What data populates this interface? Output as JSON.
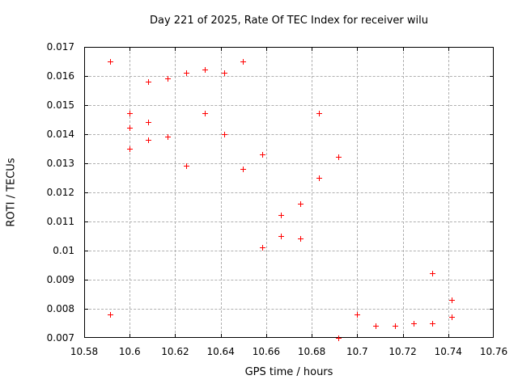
{
  "page": {
    "background": "#ffffff"
  },
  "chart_data": {
    "type": "scatter",
    "title": "Day 221 of 2025, Rate Of TEC Index for receiver wilu",
    "xlabel": "GPS time / hours",
    "ylabel": "ROTI / TECUs",
    "xlim": [
      10.58,
      10.76
    ],
    "ylim": [
      0.007,
      0.017
    ],
    "xticks": [
      10.58,
      10.6,
      10.62,
      10.64,
      10.66,
      10.68,
      10.7,
      10.72,
      10.74,
      10.76
    ],
    "xtick_labels": [
      "10.58",
      "10.6",
      "10.62",
      "10.64",
      "10.66",
      "10.68",
      "10.7",
      "10.72",
      "10.74",
      "10.76"
    ],
    "yticks": [
      0.007,
      0.008,
      0.009,
      0.01,
      0.011,
      0.012,
      0.013,
      0.014,
      0.015,
      0.016,
      0.017
    ],
    "ytick_labels": [
      "0.007",
      "0.008",
      "0.009",
      "0.01",
      "0.011",
      "0.012",
      "0.013",
      "0.014",
      "0.015",
      "0.016",
      "0.017"
    ],
    "grid": true,
    "legend": "none",
    "marker": "plus",
    "colors": {
      "marker": "#ff0000",
      "grid": "#b0b0b0",
      "frame": "#000000",
      "text": "#000000",
      "background": "#ffffff"
    },
    "series": [
      {
        "name": "ROTI",
        "points": [
          [
            10.5917,
            0.0165
          ],
          [
            10.5917,
            0.0078
          ],
          [
            10.6,
            0.0147
          ],
          [
            10.6,
            0.0142
          ],
          [
            10.6,
            0.0135
          ],
          [
            10.6083,
            0.0158
          ],
          [
            10.6083,
            0.0144
          ],
          [
            10.6083,
            0.0138
          ],
          [
            10.6167,
            0.0159
          ],
          [
            10.6167,
            0.0139
          ],
          [
            10.625,
            0.0161
          ],
          [
            10.625,
            0.0129
          ],
          [
            10.6333,
            0.0162
          ],
          [
            10.6333,
            0.0147
          ],
          [
            10.6417,
            0.0161
          ],
          [
            10.6417,
            0.014
          ],
          [
            10.65,
            0.0165
          ],
          [
            10.65,
            0.0128
          ],
          [
            10.6583,
            0.0133
          ],
          [
            10.6583,
            0.0101
          ],
          [
            10.6667,
            0.0112
          ],
          [
            10.6667,
            0.0105
          ],
          [
            10.675,
            0.0116
          ],
          [
            10.675,
            0.0104
          ],
          [
            10.6833,
            0.0147
          ],
          [
            10.6833,
            0.0125
          ],
          [
            10.6917,
            0.0132
          ],
          [
            10.6917,
            0.007
          ],
          [
            10.7,
            0.0078
          ],
          [
            10.7083,
            0.0074
          ],
          [
            10.7167,
            0.0074
          ],
          [
            10.725,
            0.0075
          ],
          [
            10.7333,
            0.0092
          ],
          [
            10.7333,
            0.0075
          ],
          [
            10.7417,
            0.0083
          ],
          [
            10.7417,
            0.0077
          ]
        ]
      }
    ]
  }
}
